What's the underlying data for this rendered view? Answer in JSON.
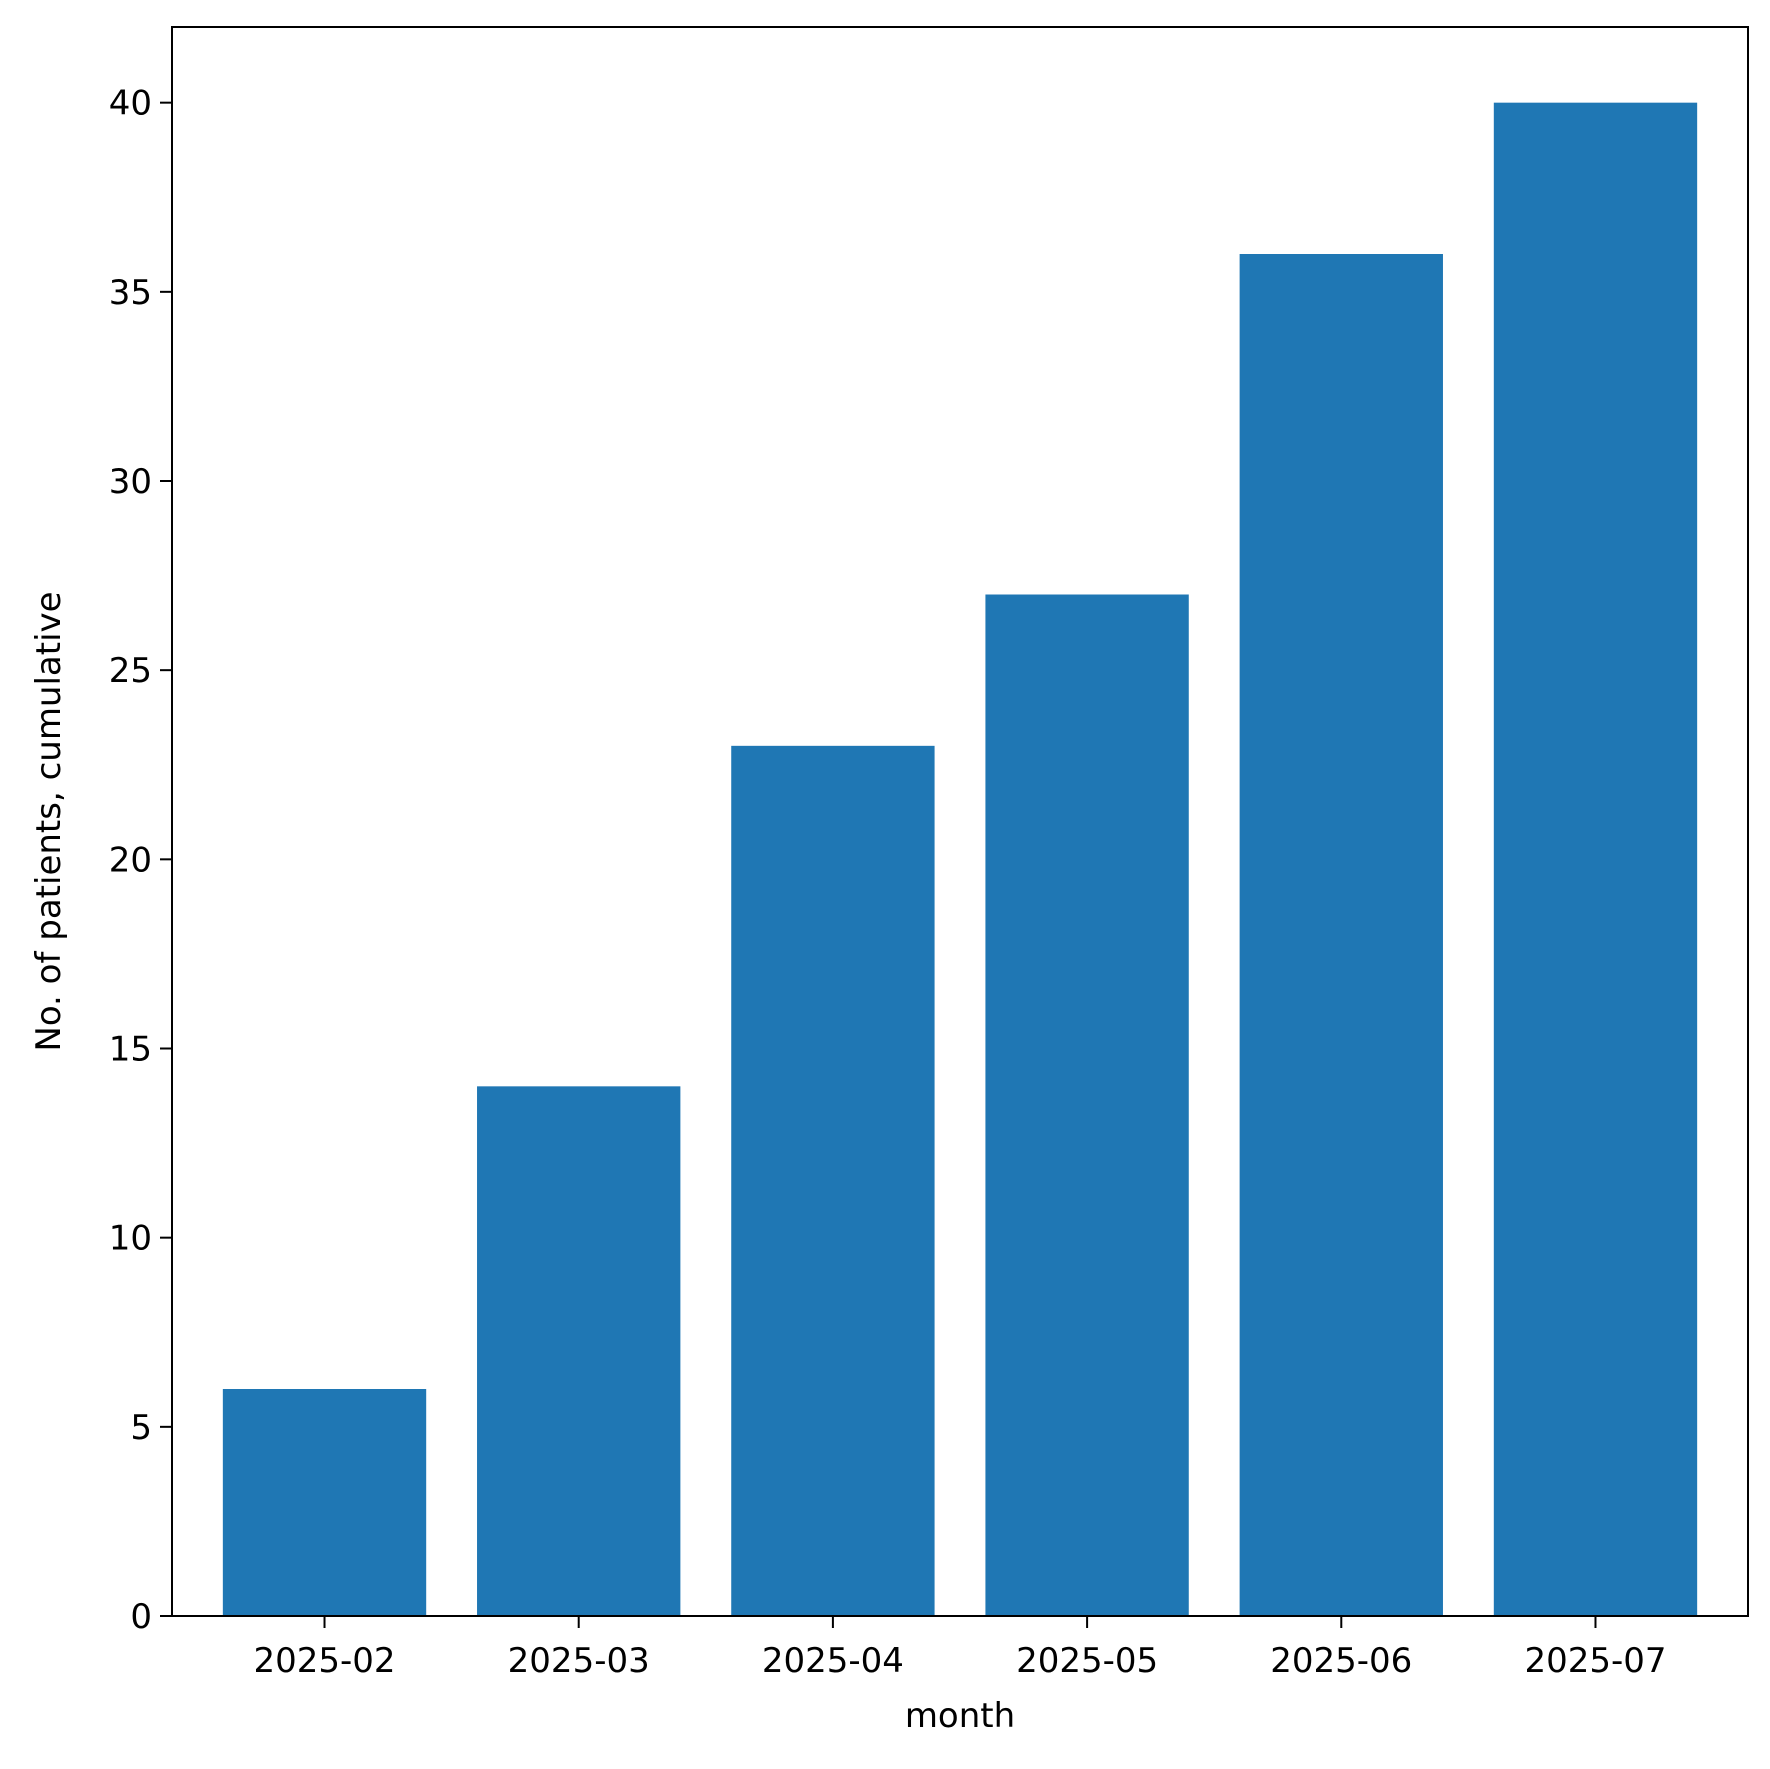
{
  "chart_data": {
    "type": "bar",
    "title": "",
    "xlabel": "month",
    "ylabel": "No. of patients, cumulative",
    "categories": [
      "2025-02",
      "2025-03",
      "2025-04",
      "2025-05",
      "2025-06",
      "2025-07"
    ],
    "values": [
      6,
      14,
      23,
      27,
      36,
      40
    ],
    "ylim": [
      0,
      42
    ],
    "yticks": [
      0,
      5,
      10,
      15,
      20,
      25,
      30,
      35,
      40
    ],
    "bar_color": "#1f77b4",
    "grid": false,
    "legend": "none"
  }
}
